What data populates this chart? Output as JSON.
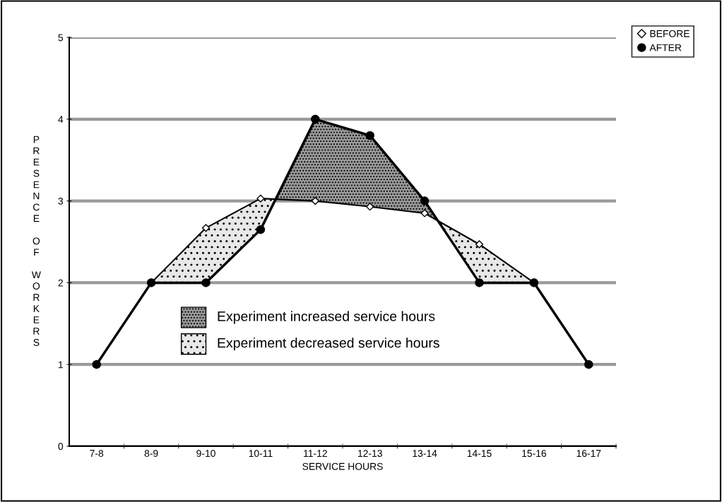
{
  "chart_data": {
    "type": "line",
    "xlabel": "SERVICE HOURS",
    "ylabel": "PRESENCE OF WORKERS",
    "categories": [
      "7-8",
      "8-9",
      "9-10",
      "10-11",
      "11-12",
      "12-13",
      "13-14",
      "14-15",
      "15-16",
      "16-17"
    ],
    "series": [
      {
        "name": "BEFORE",
        "color": "#000000",
        "marker": "diamond",
        "values": [
          1,
          2,
          2.67,
          3.03,
          3,
          2.93,
          2.85,
          2.47,
          2,
          1
        ]
      },
      {
        "name": "AFTER",
        "color": "#000000",
        "marker": "circle",
        "values": [
          1,
          2,
          2,
          2.65,
          4,
          3.8,
          3,
          2,
          2,
          1
        ]
      }
    ],
    "annotations": [
      "Experiment increased service hours",
      "Experiment decreased service hours"
    ],
    "ylim": [
      0,
      5
    ],
    "yticks": [
      0,
      1,
      2,
      3,
      4,
      5
    ],
    "grid": "y",
    "legend": "top right",
    "line_style": "solid"
  }
}
